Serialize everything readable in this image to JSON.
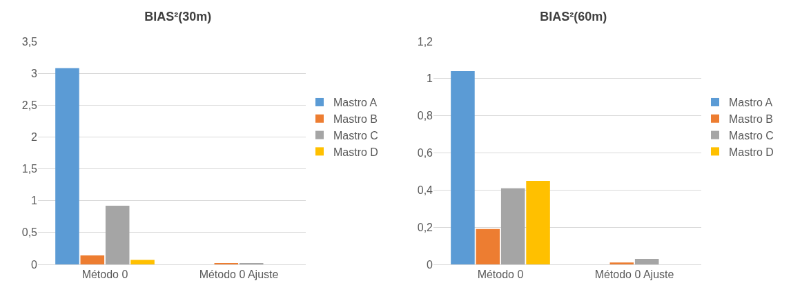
{
  "chart_data": [
    {
      "type": "bar",
      "title": "BIAS²(30m)",
      "categories": [
        "Método 0",
        "Método 0 Ajuste"
      ],
      "series": [
        {
          "name": "Mastro A",
          "color": "#5b9bd5",
          "values": [
            3.08,
            0
          ]
        },
        {
          "name": "Mastro B",
          "color": "#ed7d31",
          "values": [
            0.14,
            0.02
          ]
        },
        {
          "name": "Mastro C",
          "color": "#a5a5a5",
          "values": [
            0.92,
            0.02
          ]
        },
        {
          "name": "Mastro D",
          "color": "#ffc000",
          "values": [
            0.07,
            0
          ]
        }
      ],
      "ylim": [
        0,
        3.5
      ],
      "yticks": [
        0,
        {
          "value": 0.5,
          "label": "0,5"
        },
        1,
        {
          "value": 1.5,
          "label": "1,5"
        },
        2,
        {
          "value": 2.5,
          "label": "2,5"
        },
        3,
        {
          "value": 3.5,
          "label": "3,5"
        }
      ],
      "grid": "y",
      "legend": "right"
    },
    {
      "type": "bar",
      "title": "BIAS²(60m)",
      "categories": [
        "Método 0",
        "Método 0 Ajuste"
      ],
      "series": [
        {
          "name": "Mastro A",
          "color": "#5b9bd5",
          "values": [
            1.04,
            0
          ]
        },
        {
          "name": "Mastro B",
          "color": "#ed7d31",
          "values": [
            0.19,
            0.01
          ]
        },
        {
          "name": "Mastro C",
          "color": "#a5a5a5",
          "values": [
            0.41,
            0.03
          ]
        },
        {
          "name": "Mastro D",
          "color": "#ffc000",
          "values": [
            0.45,
            0
          ]
        }
      ],
      "ylim": [
        0,
        1.2
      ],
      "yticks": [
        0,
        {
          "value": 0.2,
          "label": "0,2"
        },
        {
          "value": 0.4,
          "label": "0,4"
        },
        {
          "value": 0.6,
          "label": "0,6"
        },
        {
          "value": 0.8,
          "label": "0,8"
        },
        1,
        {
          "value": 1.2,
          "label": "1,2"
        }
      ],
      "grid": "y",
      "legend": "right"
    }
  ]
}
